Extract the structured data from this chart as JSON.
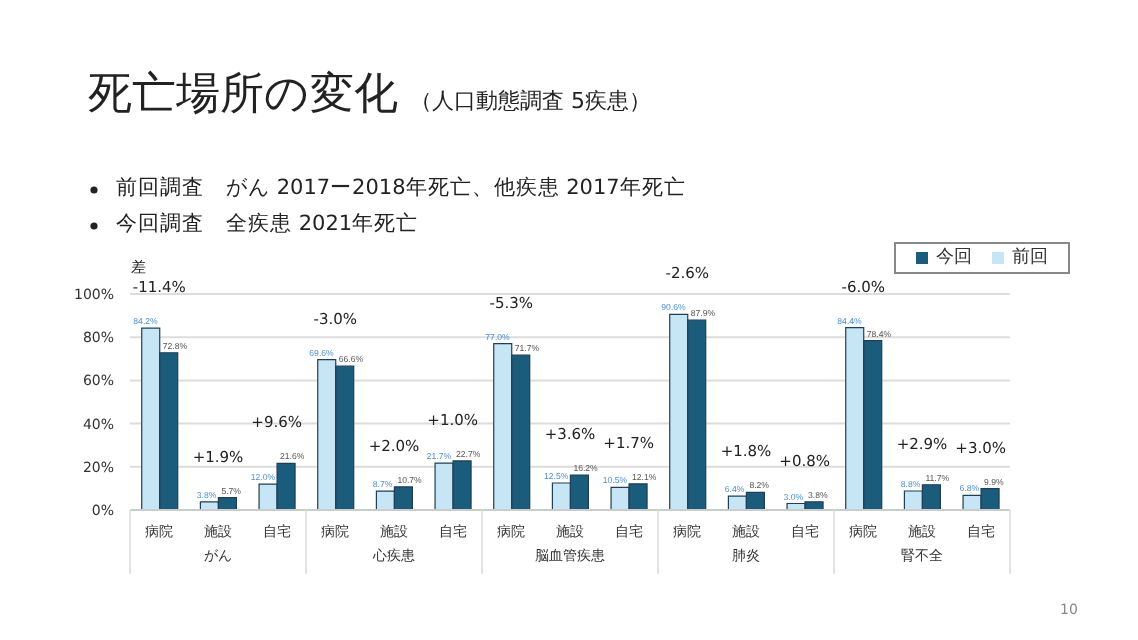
{
  "chart_data": {
    "type": "bar",
    "title": "死亡場所の変化",
    "subtitle": "（人口動態調査 5疾患）",
    "categories": [
      "病院",
      "施設",
      "自宅",
      "病院",
      "施設",
      "自宅",
      "病院",
      "施設",
      "自宅",
      "病院",
      "施設",
      "自宅",
      "病院",
      "施設",
      "自宅"
    ],
    "series": [
      {
        "name": "前回",
        "color": "#c6e6f6",
        "values": [
          84.2,
          3.8,
          12.0,
          69.6,
          8.7,
          21.7,
          77.0,
          12.5,
          10.5,
          90.6,
          6.4,
          3.0,
          84.4,
          8.8,
          6.8
        ],
        "value_labels": [
          "84.2%",
          "3.8%",
          "12.0%",
          "69.6%",
          "8.7%",
          "21.7%",
          "77.0%",
          "12.5%",
          "10.5%",
          "90.6%",
          "6.4%",
          "3.0%",
          "84.4%",
          "8.8%",
          "6.8%"
        ]
      },
      {
        "name": "今回",
        "color": "#1b5b7c",
        "values": [
          72.8,
          5.7,
          21.6,
          66.6,
          10.7,
          22.7,
          71.7,
          16.2,
          12.1,
          87.9,
          8.2,
          3.8,
          78.4,
          11.7,
          9.9
        ],
        "value_labels": [
          "72.8%",
          "5.7%",
          "21.6%",
          "66.6%",
          "10.7%",
          "22.7%",
          "71.7%",
          "16.2%",
          "12.1%",
          "87.9%",
          "8.2%",
          "3.8%",
          "78.4%",
          "11.7%",
          "9.9%"
        ]
      }
    ],
    "ylim": [
      0,
      100
    ],
    "yticks": [
      {
        "value": 0,
        "label": "0%"
      },
      {
        "value": 20,
        "label": "20%"
      },
      {
        "value": 40,
        "label": "40%"
      },
      {
        "value": 60,
        "label": "60%"
      },
      {
        "value": 80,
        "label": "80%"
      },
      {
        "value": 100,
        "label": "100%"
      }
    ],
    "grid": "y",
    "legend": "top right",
    "annotations": [
      "前回調査　がん 2017ー2018年死亡、他疾患 2017年死亡",
      "今回調査　全疾患 2021年死亡",
      "差",
      "-11.4%",
      "+1.9%",
      "+9.6%",
      "-3.0%",
      "+2.0%",
      "+1.0%",
      "-5.3%",
      "+3.6%",
      "+1.7%",
      "-2.6%",
      "+1.8%",
      "+0.8%",
      "-6.0%",
      "+2.9%",
      "+3.0%",
      "がん",
      "心疾患",
      "脳血管疾患",
      "肺炎",
      "腎不全",
      "10"
    ]
  }
}
